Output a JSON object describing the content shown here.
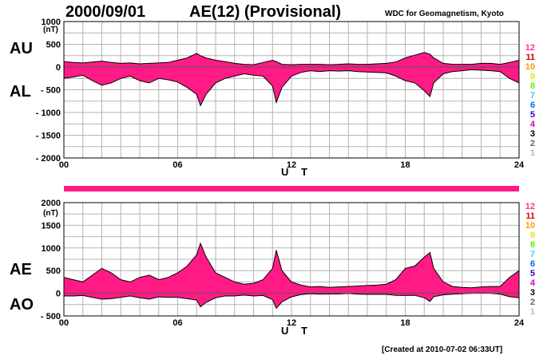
{
  "header": {
    "date": "2000/09/01",
    "title": "AE(12) (Provisional)",
    "source": "WDC for Geomagnetism, Kyoto",
    "created": "[Created at 2010-07-02 06:33UT]"
  },
  "colors": {
    "fill": "#ff1a86",
    "line": "#000000",
    "grid": "#b4b4b4"
  },
  "station_numbers": [
    {
      "label": "12",
      "color": "#ff3399"
    },
    {
      "label": "11",
      "color": "#dd0000"
    },
    {
      "label": "10",
      "color": "#ff9900"
    },
    {
      "label": "9",
      "color": "#e6e600"
    },
    {
      "label": "8",
      "color": "#66ee00"
    },
    {
      "label": "7",
      "color": "#33ccff"
    },
    {
      "label": "6",
      "color": "#0066ff"
    },
    {
      "label": "5",
      "color": "#3300cc"
    },
    {
      "label": "4",
      "color": "#cc00cc"
    },
    {
      "label": "3",
      "color": "#000000"
    },
    {
      "label": "2",
      "color": "#666666"
    },
    {
      "label": "1",
      "color": "#bbbbbb"
    }
  ],
  "chart_data": [
    {
      "type": "area",
      "upper_label": "AU",
      "lower_label": "AL",
      "unit": "(nT)",
      "xlabel": "U T",
      "xlim": [
        0,
        24
      ],
      "ylim": [
        -2000,
        1000
      ],
      "x_ticks": [
        "00",
        "06",
        "12",
        "18",
        "24"
      ],
      "y_ticks": [
        {
          "label": "1000",
          "value": 1000
        },
        {
          "label": "500",
          "value": 500
        },
        {
          "label": "0",
          "value": 0
        },
        {
          "label": "- 500",
          "value": -500
        },
        {
          "label": "- 1000",
          "value": -1000
        },
        {
          "label": "- 1500",
          "value": -1500
        },
        {
          "label": "- 2000",
          "value": -2000
        }
      ],
      "grid": true,
      "x": [
        0,
        0.5,
        1,
        1.5,
        2,
        2.5,
        3,
        3.5,
        4,
        4.5,
        5,
        5.5,
        6,
        6.5,
        7,
        7.2,
        7.5,
        8,
        8.5,
        9,
        9.5,
        10,
        10.5,
        11,
        11.2,
        11.5,
        12,
        12.5,
        13,
        13.5,
        14,
        14.5,
        15,
        15.5,
        16,
        16.5,
        17,
        17.5,
        18,
        18.5,
        19,
        19.3,
        19.5,
        20,
        20.5,
        21,
        21.5,
        22,
        22.5,
        23,
        23.5,
        24
      ],
      "series": [
        {
          "name": "AU",
          "values": [
            120,
            100,
            90,
            110,
            130,
            100,
            80,
            90,
            70,
            80,
            90,
            100,
            150,
            200,
            300,
            250,
            200,
            150,
            120,
            80,
            60,
            50,
            100,
            150,
            120,
            60,
            50,
            60,
            60,
            60,
            50,
            60,
            70,
            60,
            60,
            70,
            80,
            110,
            200,
            260,
            320,
            280,
            200,
            80,
            60,
            60,
            60,
            80,
            80,
            60,
            100,
            150
          ]
        },
        {
          "name": "AL",
          "values": [
            -250,
            -220,
            -180,
            -300,
            -400,
            -350,
            -250,
            -200,
            -300,
            -350,
            -250,
            -280,
            -330,
            -450,
            -600,
            -850,
            -600,
            -350,
            -250,
            -200,
            -150,
            -180,
            -200,
            -420,
            -780,
            -450,
            -200,
            -120,
            -80,
            -100,
            -80,
            -90,
            -80,
            -100,
            -110,
            -120,
            -130,
            -200,
            -300,
            -350,
            -520,
            -650,
            -350,
            -150,
            -100,
            -80,
            -60,
            -70,
            -80,
            -100,
            -250,
            -350
          ]
        }
      ]
    },
    {
      "type": "area",
      "upper_label": "AE",
      "lower_label": "AO",
      "unit": "(nT)",
      "xlabel": "U T",
      "xlim": [
        0,
        24
      ],
      "ylim": [
        -500,
        2000
      ],
      "x_ticks": [
        "00",
        "06",
        "12",
        "18",
        "24"
      ],
      "y_ticks": [
        {
          "label": "2000",
          "value": 2000
        },
        {
          "label": "1500",
          "value": 1500
        },
        {
          "label": "1000",
          "value": 1000
        },
        {
          "label": "500",
          "value": 500
        },
        {
          "label": "0",
          "value": 0
        },
        {
          "label": "- 500",
          "value": -500
        }
      ],
      "grid": true,
      "x": [
        0,
        0.5,
        1,
        1.5,
        2,
        2.5,
        3,
        3.5,
        4,
        4.5,
        5,
        5.5,
        6,
        6.5,
        7,
        7.2,
        7.5,
        8,
        8.5,
        9,
        9.5,
        10,
        10.5,
        11,
        11.2,
        11.5,
        12,
        12.5,
        13,
        13.5,
        14,
        14.5,
        15,
        15.5,
        16,
        16.5,
        17,
        17.5,
        18,
        18.5,
        19,
        19.3,
        19.5,
        20,
        20.5,
        21,
        21.5,
        22,
        22.5,
        23,
        23.5,
        24
      ],
      "series": [
        {
          "name": "AE",
          "values": [
            350,
            300,
            250,
            400,
            550,
            450,
            300,
            250,
            350,
            400,
            300,
            350,
            450,
            600,
            850,
            1100,
            800,
            450,
            350,
            250,
            200,
            220,
            300,
            550,
            950,
            500,
            250,
            180,
            140,
            150,
            130,
            140,
            150,
            160,
            170,
            180,
            200,
            300,
            550,
            600,
            800,
            900,
            550,
            250,
            150,
            130,
            120,
            140,
            150,
            150,
            350,
            500
          ]
        },
        {
          "name": "AO",
          "values": [
            -60,
            -60,
            -50,
            -90,
            -130,
            -120,
            -90,
            -60,
            -100,
            -130,
            -80,
            -90,
            -90,
            -120,
            -150,
            -300,
            -200,
            -100,
            -60,
            -60,
            -40,
            -60,
            -50,
            -140,
            -330,
            -190,
            -80,
            -30,
            -10,
            -20,
            -15,
            -15,
            -5,
            -20,
            -25,
            -25,
            -25,
            -45,
            -50,
            -45,
            -100,
            -180,
            -75,
            -35,
            -20,
            -10,
            0,
            5,
            0,
            -20,
            -75,
            -100
          ]
        }
      ]
    }
  ]
}
